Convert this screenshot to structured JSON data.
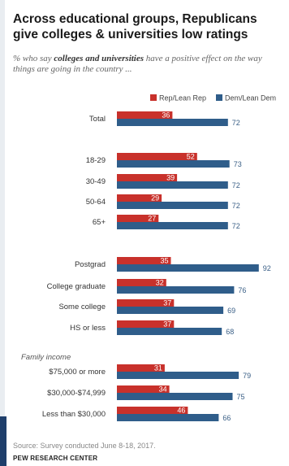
{
  "title": "Across educational  groups, Republicans give colleges & universities low ratings",
  "subtitle_pre": "% who say ",
  "subtitle_em": "colleges and universities",
  "subtitle_post": " have a positive effect on the way things are going in the country ...",
  "source": "Source: Survey conducted June 8-18, 2017.",
  "brand": "PEW RESEARCH CENTER",
  "colors": {
    "rep": "#c8312b",
    "dem": "#2f5d8a"
  },
  "chart_data": {
    "type": "bar",
    "orientation": "horizontal",
    "legend_position": "top",
    "series": [
      {
        "name": "Rep/Lean Rep",
        "values": [
          36,
          52,
          39,
          29,
          27,
          35,
          32,
          37,
          37,
          31,
          34,
          46
        ]
      },
      {
        "name": "Dem/Lean Dem",
        "values": [
          72,
          73,
          72,
          72,
          72,
          92,
          76,
          69,
          68,
          79,
          75,
          66
        ]
      }
    ],
    "categories": [
      "Total",
      "18-29",
      "30-49",
      "50-64",
      "65+",
      "Postgrad",
      "College graduate",
      "Some college",
      "HS or less",
      "$75,000 or more",
      "$30,000-$74,999",
      "Less than $30,000"
    ],
    "group_label": "Family income",
    "xlim": [
      0,
      100
    ]
  }
}
